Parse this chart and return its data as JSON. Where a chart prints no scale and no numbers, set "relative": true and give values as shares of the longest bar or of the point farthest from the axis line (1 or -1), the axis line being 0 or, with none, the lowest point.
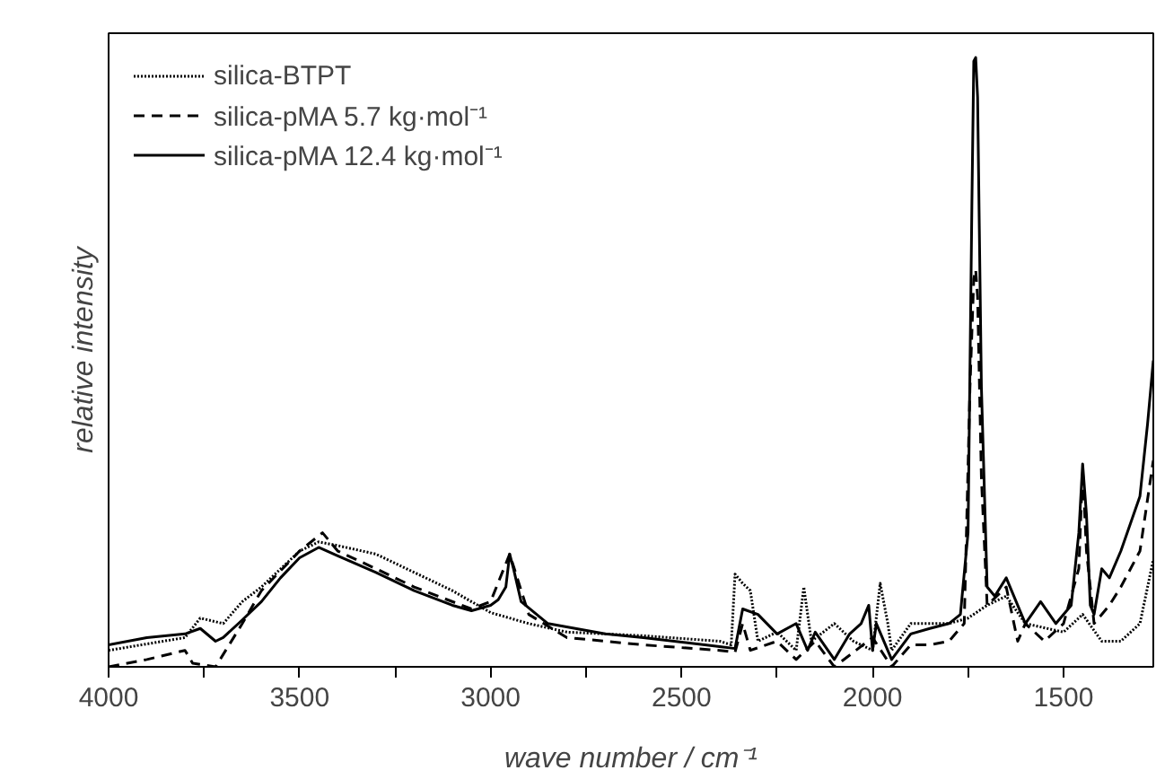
{
  "chart_data": {
    "type": "line",
    "relative": true,
    "xlabel": "wave number / cm⁻¹",
    "ylabel": "relative intensity",
    "legend": "top left",
    "grid": false,
    "xlim": [
      4000,
      1265
    ],
    "xticks": [
      4000,
      {
        "value": 3750,
        "label": null
      },
      3500,
      {
        "value": 3250,
        "label": null
      },
      3000,
      {
        "value": 2750,
        "label": null
      },
      2500,
      {
        "value": 2250,
        "label": null
      },
      2000,
      {
        "value": 1750,
        "label": null
      },
      1500
    ],
    "series": [
      {
        "name": "silica-BTPT",
        "color": "#000000",
        "line_style": "dotted",
        "x": [
          4000,
          3800,
          3760,
          3700,
          3650,
          3600,
          3500,
          3450,
          3400,
          3300,
          3200,
          3100,
          3000,
          2900,
          2800,
          2600,
          2400,
          2370,
          2360,
          2340,
          2320,
          2300,
          2250,
          2200,
          2180,
          2160,
          2100,
          2050,
          2000,
          1980,
          1960,
          1950,
          1900,
          1800,
          1750,
          1700,
          1650,
          1600,
          1500,
          1450,
          1400,
          1350,
          1300,
          1265
        ],
        "values": [
          0.027,
          0.048,
          0.08,
          0.071,
          0.107,
          0.131,
          0.19,
          0.205,
          0.199,
          0.185,
          0.155,
          0.125,
          0.089,
          0.071,
          0.057,
          0.051,
          0.042,
          0.036,
          0.152,
          0.137,
          0.125,
          0.042,
          0.057,
          0.027,
          0.131,
          0.042,
          0.071,
          0.042,
          0.027,
          0.137,
          0.071,
          0.027,
          0.071,
          0.071,
          0.08,
          0.101,
          0.116,
          0.071,
          0.057,
          0.086,
          0.042,
          0.042,
          0.071,
          0.176
        ]
      },
      {
        "name": "silica-pMA 5.7 kg·mol⁻¹",
        "color": "#000000",
        "line_style": "dashed",
        "x": [
          4000,
          3900,
          3800,
          3780,
          3720,
          3650,
          3600,
          3500,
          3440,
          3400,
          3300,
          3200,
          3050,
          3000,
          2950,
          2900,
          2800,
          2700,
          2600,
          2400,
          2360,
          2340,
          2320,
          2250,
          2200,
          2150,
          2100,
          2000,
          1950,
          1900,
          1850,
          1800,
          1760,
          1745,
          1735,
          1730,
          1725,
          1715,
          1700,
          1650,
          1620,
          1600,
          1550,
          1500,
          1460,
          1450,
          1440,
          1420,
          1380,
          1350,
          1300,
          1265
        ],
        "values": [
          0.0,
          0.012,
          0.027,
          0.006,
          0.0,
          0.071,
          0.125,
          0.19,
          0.22,
          0.19,
          0.161,
          0.131,
          0.095,
          0.107,
          0.185,
          0.086,
          0.048,
          0.042,
          0.036,
          0.027,
          0.024,
          0.071,
          0.027,
          0.042,
          0.012,
          0.042,
          0.0,
          0.048,
          0.0,
          0.036,
          0.036,
          0.042,
          0.071,
          0.458,
          0.637,
          0.652,
          0.607,
          0.31,
          0.101,
          0.131,
          0.042,
          0.071,
          0.042,
          0.071,
          0.161,
          0.324,
          0.19,
          0.071,
          0.101,
          0.131,
          0.19,
          0.339
        ]
      },
      {
        "name": "silica-pMA 12.4 kg·mol⁻¹",
        "color": "#000000",
        "line_style": "solid",
        "x": [
          4000,
          3900,
          3800,
          3760,
          3720,
          3700,
          3650,
          3600,
          3550,
          3500,
          3450,
          3400,
          3300,
          3200,
          3100,
          3050,
          3000,
          2980,
          2960,
          2950,
          2940,
          2920,
          2850,
          2700,
          2600,
          2400,
          2360,
          2340,
          2300,
          2250,
          2200,
          2170,
          2150,
          2100,
          2060,
          2030,
          2010,
          2000,
          1990,
          1950,
          1900,
          1850,
          1800,
          1770,
          1750,
          1740,
          1735,
          1730,
          1725,
          1715,
          1700,
          1680,
          1650,
          1600,
          1560,
          1520,
          1480,
          1460,
          1450,
          1440,
          1430,
          1420,
          1400,
          1380,
          1350,
          1300,
          1280,
          1265
        ],
        "values": [
          0.036,
          0.048,
          0.054,
          0.063,
          0.042,
          0.048,
          0.077,
          0.107,
          0.146,
          0.179,
          0.196,
          0.182,
          0.155,
          0.125,
          0.101,
          0.092,
          0.101,
          0.11,
          0.131,
          0.185,
          0.161,
          0.107,
          0.071,
          0.054,
          0.048,
          0.033,
          0.03,
          0.095,
          0.086,
          0.054,
          0.071,
          0.027,
          0.057,
          0.012,
          0.054,
          0.071,
          0.101,
          0.027,
          0.071,
          0.012,
          0.054,
          0.063,
          0.071,
          0.086,
          0.22,
          0.756,
          0.994,
          1.0,
          0.935,
          0.458,
          0.131,
          0.116,
          0.146,
          0.071,
          0.107,
          0.071,
          0.101,
          0.22,
          0.333,
          0.25,
          0.101,
          0.086,
          0.161,
          0.146,
          0.19,
          0.28,
          0.399,
          0.503
        ]
      }
    ]
  }
}
